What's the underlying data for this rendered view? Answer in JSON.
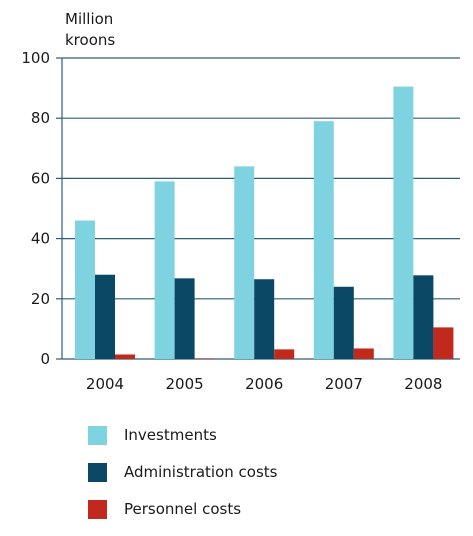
{
  "chart_data": {
    "type": "bar",
    "unit_label": [
      "Million",
      "kroons"
    ],
    "categories": [
      "2004",
      "2005",
      "2006",
      "2007",
      "2008"
    ],
    "series": [
      {
        "name": "Investments",
        "color": "#7fd3e0",
        "values": [
          46,
          59,
          64,
          79,
          90.5
        ]
      },
      {
        "name": "Administration costs",
        "color": "#0b4866",
        "values": [
          28,
          26.8,
          26.5,
          24,
          27.8
        ]
      },
      {
        "name": "Personnel costs",
        "color": "#c0291b",
        "values": [
          1.5,
          0.2,
          3.2,
          3.5,
          10.5
        ]
      }
    ],
    "ylim": [
      0,
      100
    ],
    "yticks": [
      0,
      20,
      40,
      60,
      80,
      100
    ],
    "grid": true,
    "legend_position": "bottom"
  }
}
